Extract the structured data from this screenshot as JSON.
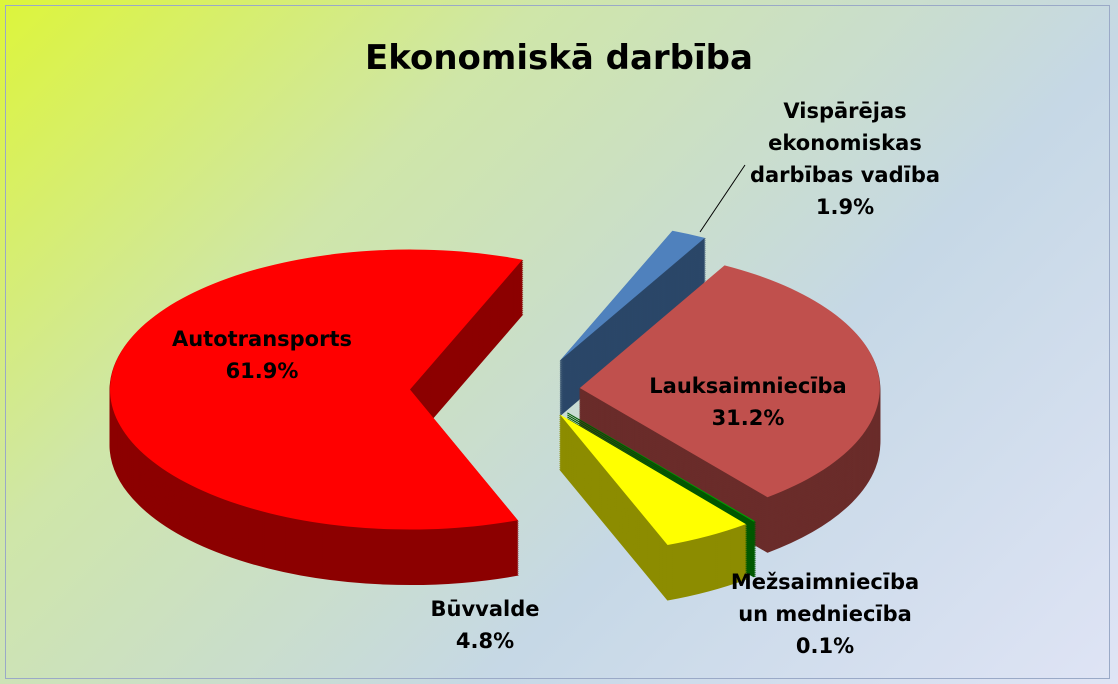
{
  "chart_data": {
    "type": "pie",
    "title": "Ekonomiskā darbība",
    "categories": [
      "Vispārējas ekonomiskas darbības vadība",
      "Lauksaimniecība",
      "Mežsaimniecība un medniecība",
      "Būvvalde",
      "Autotransports"
    ],
    "values": [
      1.9,
      31.2,
      0.1,
      4.8,
      61.9
    ],
    "value_labels": [
      "1.9%",
      "31.2%",
      "0.1%",
      "4.8%",
      "61.9%"
    ],
    "colors": [
      "#4f81bd",
      "#c0504d",
      "#00a000",
      "#ffff00",
      "#ff0000"
    ]
  }
}
